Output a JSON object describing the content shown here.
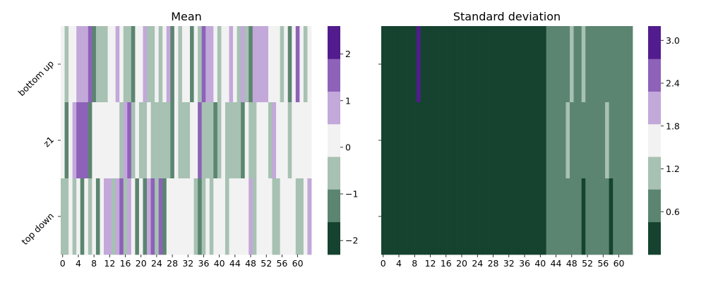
{
  "colors": {
    "palette": [
      "#15432f",
      "#5b8570",
      "#a7c1b3",
      "#f2f2f2",
      "#c3a8da",
      "#8d62b8",
      "#521c8e"
    ]
  },
  "chart_data": [
    {
      "type": "heatmap",
      "title": "Mean",
      "rows": [
        "bottom up",
        "z1",
        "top down"
      ],
      "x_ticks": [
        "0",
        "4",
        "8",
        "12",
        "16",
        "20",
        "24",
        "28",
        "32",
        "36",
        "40",
        "44",
        "48",
        "52",
        "56",
        "60"
      ],
      "columns": 64,
      "colorbar": {
        "ticks": [
          "−2",
          "−1",
          "0",
          "1",
          "2"
        ],
        "range": [
          -2.3,
          2.6
        ],
        "levels": 7
      },
      "values": [
        [
          0,
          -1,
          0,
          0,
          1,
          1,
          1,
          2,
          -2,
          -1,
          -1,
          -1,
          0,
          0,
          1,
          0,
          -1,
          -1,
          -2,
          0,
          0,
          1,
          -1,
          -1,
          0,
          -1,
          0,
          1,
          -2,
          0,
          -1,
          0,
          0,
          -2,
          0,
          -1,
          2,
          1,
          1,
          0,
          -1,
          0,
          0,
          1,
          0,
          -1,
          1,
          -1,
          -2,
          1,
          1,
          1,
          1,
          0,
          0,
          0,
          -1,
          0,
          -2,
          0,
          2,
          0,
          -1,
          0
        ],
        [
          0,
          -2,
          0,
          1,
          2,
          2,
          2,
          -2,
          0,
          0,
          0,
          0,
          0,
          0,
          0,
          -1,
          1,
          2,
          -1,
          0,
          -1,
          -1,
          0,
          -1,
          -1,
          -1,
          -1,
          -1,
          -2,
          0,
          -1,
          -1,
          -1,
          0,
          0,
          2,
          -1,
          -1,
          -1,
          -2,
          -1,
          0,
          -1,
          -1,
          -1,
          -1,
          -2,
          0,
          -1,
          -1,
          0,
          0,
          0,
          -1,
          1,
          0,
          0,
          0,
          -1,
          0,
          0,
          0,
          0,
          0
        ],
        [
          -1,
          -1,
          0,
          -1,
          0,
          -2,
          0,
          -1,
          0,
          -2,
          0,
          1,
          1,
          -1,
          1,
          2,
          -1,
          1,
          0,
          -2,
          0,
          -2,
          1,
          2,
          -1,
          2,
          -2,
          0,
          0,
          0,
          0,
          0,
          0,
          0,
          -1,
          -2,
          -1,
          0,
          -1,
          0,
          0,
          0,
          -1,
          0,
          0,
          0,
          0,
          0,
          1,
          -1,
          0,
          0,
          0,
          0,
          -1,
          -1,
          0,
          0,
          0,
          0,
          -1,
          -1,
          0,
          1
        ]
      ]
    },
    {
      "type": "heatmap",
      "title": "Standard deviation",
      "rows": [
        "",
        "",
        ""
      ],
      "x_ticks": [
        "0",
        "4",
        "8",
        "12",
        "16",
        "20",
        "24",
        "28",
        "32",
        "36",
        "40",
        "44",
        "48",
        "52",
        "56",
        "60"
      ],
      "columns": 64,
      "colorbar": {
        "ticks": [
          "0.6",
          "1.2",
          "1.8",
          "2.4",
          "3.0"
        ],
        "range": [
          0.0,
          3.2
        ],
        "levels": 7
      },
      "row_values": [
        {
          "default": 0.3,
          "ranges": [
            [
              42,
              63,
              0.8
            ]
          ],
          "overrides": {
            "9": 3.0,
            "48": 1.2,
            "51": 1.2
          }
        },
        {
          "default": 0.3,
          "ranges": [
            [
              42,
              63,
              0.8
            ]
          ],
          "overrides": {
            "47": 1.2,
            "57": 1.2
          }
        },
        {
          "default": 0.3,
          "ranges": [
            [
              42,
              63,
              0.8
            ]
          ],
          "overrides": {
            "51": 0.3,
            "58": 0.3
          }
        }
      ]
    }
  ]
}
